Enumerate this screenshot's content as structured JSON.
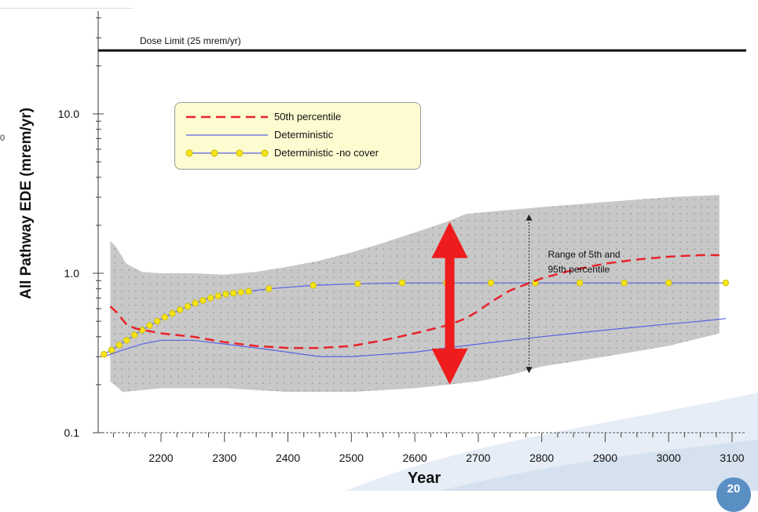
{
  "chart_data": {
    "type": "line",
    "title": "",
    "xlabel": "Year",
    "ylabel": "All Pathway EDE (mrem/yr)",
    "x_ticks": [
      2200,
      2300,
      2400,
      2500,
      2600,
      2700,
      2800,
      2900,
      3000,
      3100
    ],
    "y_ticks": [
      {
        "value": 0.1,
        "label": "0.1"
      },
      {
        "value": 1.0,
        "label": "1.0"
      },
      {
        "value": 10.0,
        "label": "10.0"
      }
    ],
    "xlim": [
      2090,
      3115
    ],
    "ylim": [
      0.1,
      40
    ],
    "yscale": "log",
    "grid": false,
    "legend_position": "upper-left",
    "dose_limit": {
      "value": 25,
      "label": "Dose Limit (25 mrem/yr)"
    },
    "band": {
      "name": "Range of 5th and 95th percentile",
      "color": "#c8c8c8",
      "upper": [
        [
          2120,
          1.6
        ],
        [
          2130,
          1.45
        ],
        [
          2145,
          1.15
        ],
        [
          2170,
          1.02
        ],
        [
          2200,
          1.0
        ],
        [
          2250,
          1.0
        ],
        [
          2300,
          0.98
        ],
        [
          2350,
          1.02
        ],
        [
          2400,
          1.1
        ],
        [
          2450,
          1.2
        ],
        [
          2500,
          1.35
        ],
        [
          2550,
          1.55
        ],
        [
          2600,
          1.8
        ],
        [
          2650,
          2.1
        ],
        [
          2680,
          2.35
        ],
        [
          2700,
          2.4
        ],
        [
          2800,
          2.6
        ],
        [
          2900,
          2.8
        ],
        [
          3000,
          3.0
        ],
        [
          3080,
          3.1
        ]
      ],
      "lower": [
        [
          2120,
          0.21
        ],
        [
          2140,
          0.18
        ],
        [
          2200,
          0.19
        ],
        [
          2300,
          0.19
        ],
        [
          2400,
          0.18
        ],
        [
          2500,
          0.18
        ],
        [
          2600,
          0.19
        ],
        [
          2700,
          0.21
        ],
        [
          2750,
          0.23
        ],
        [
          2800,
          0.26
        ],
        [
          2900,
          0.3
        ],
        [
          3000,
          0.35
        ],
        [
          3080,
          0.42
        ]
      ]
    },
    "series": [
      {
        "name": "50th percentile",
        "color": "#e8232a",
        "style": "dashed",
        "x": [
          2120,
          2130,
          2145,
          2160,
          2200,
          2250,
          2300,
          2350,
          2400,
          2450,
          2500,
          2550,
          2600,
          2650,
          2680,
          2700,
          2720,
          2750,
          2800,
          2850,
          2900,
          2950,
          3000,
          3050,
          3080
        ],
        "y": [
          0.62,
          0.57,
          0.48,
          0.45,
          0.42,
          0.4,
          0.37,
          0.35,
          0.34,
          0.34,
          0.35,
          0.38,
          0.42,
          0.47,
          0.52,
          0.58,
          0.66,
          0.78,
          0.93,
          1.05,
          1.15,
          1.22,
          1.27,
          1.3,
          1.3
        ]
      },
      {
        "name": "Deterministic",
        "color": "#5a63e0",
        "style": "solid",
        "x": [
          2110,
          2140,
          2170,
          2200,
          2250,
          2300,
          2350,
          2400,
          2450,
          2500,
          2550,
          2600,
          2650,
          2700,
          2750,
          2800,
          2850,
          2900,
          2950,
          3000,
          3050,
          3090
        ],
        "y": [
          0.3,
          0.33,
          0.36,
          0.38,
          0.38,
          0.36,
          0.34,
          0.32,
          0.3,
          0.3,
          0.31,
          0.32,
          0.34,
          0.36,
          0.38,
          0.4,
          0.42,
          0.44,
          0.46,
          0.48,
          0.5,
          0.52
        ]
      },
      {
        "name": "Deterministic -no cover",
        "color": "#5a63e0",
        "style": "solid-markers",
        "marker_color": "#f5e416",
        "x": [
          2110,
          2122,
          2134,
          2146,
          2158,
          2170,
          2182,
          2194,
          2206,
          2218,
          2230,
          2242,
          2254,
          2266,
          2278,
          2290,
          2302,
          2314,
          2326,
          2338,
          2370,
          2440,
          2510,
          2580,
          2650,
          2720,
          2790,
          2860,
          2930,
          3000,
          3090
        ],
        "y": [
          0.31,
          0.33,
          0.355,
          0.38,
          0.41,
          0.44,
          0.47,
          0.5,
          0.53,
          0.56,
          0.59,
          0.62,
          0.65,
          0.675,
          0.7,
          0.72,
          0.74,
          0.75,
          0.76,
          0.77,
          0.8,
          0.84,
          0.86,
          0.87,
          0.87,
          0.87,
          0.87,
          0.87,
          0.87,
          0.87,
          0.87
        ]
      }
    ],
    "annotation": {
      "text_line1": "Range of 5th and",
      "text_line2": "95th percentile",
      "x": 2780
    },
    "highlight_arrow": {
      "x": 2655,
      "y_top": 2.1,
      "y_bottom": 0.2,
      "color": "#ee1c1c"
    }
  },
  "slide": {
    "page_number": "20",
    "side_char": "0"
  }
}
